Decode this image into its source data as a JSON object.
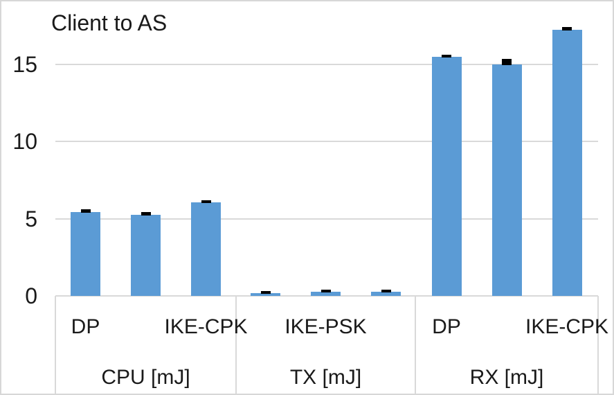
{
  "chart_data": {
    "type": "bar",
    "title": "Client to AS",
    "bar_color": "#5B9BD5",
    "error_color": "#000000",
    "grid_color": "#D9D9D9",
    "legend_position": "none",
    "grid": true,
    "ylim": [
      0,
      18.2
    ],
    "y_ticks": [
      "0",
      "5",
      "10",
      "15"
    ],
    "series_names": [
      "DP",
      "IKE-PSK",
      "IKE-CPK"
    ],
    "groups": [
      {
        "label": "CPU [mJ]",
        "bars": [
          {
            "series": "DP",
            "value": 5.45,
            "error": 0.12
          },
          {
            "series": "IKE-PSK",
            "value": 5.25,
            "error": 0.12
          },
          {
            "series": "IKE-CPK",
            "value": 6.05,
            "error": 0.1
          }
        ]
      },
      {
        "label": "TX [mJ]",
        "bars": [
          {
            "series": "DP",
            "value": 0.2,
            "error": 0.08
          },
          {
            "series": "IKE-PSK",
            "value": 0.25,
            "error": 0.08
          },
          {
            "series": "IKE-CPK",
            "value": 0.25,
            "error": 0.08
          }
        ]
      },
      {
        "label": "RX [mJ]",
        "bars": [
          {
            "series": "DP",
            "value": 15.5,
            "error": 0.1
          },
          {
            "series": "IKE-PSK",
            "value": 15.0,
            "error": 0.22
          },
          {
            "series": "IKE-CPK",
            "value": 17.25,
            "error": 0.12
          }
        ]
      }
    ],
    "visible_bar_labels": [
      {
        "label": "DP",
        "group": 0,
        "bar": 0
      },
      {
        "label": "IKE-CPK",
        "group": 0,
        "bar": 2
      },
      {
        "label": "IKE-PSK",
        "group": 1,
        "bar": 1
      },
      {
        "label": "DP",
        "group": 2,
        "bar": 0
      },
      {
        "label": "IKE-CPK",
        "group": 2,
        "bar": 2
      }
    ]
  }
}
